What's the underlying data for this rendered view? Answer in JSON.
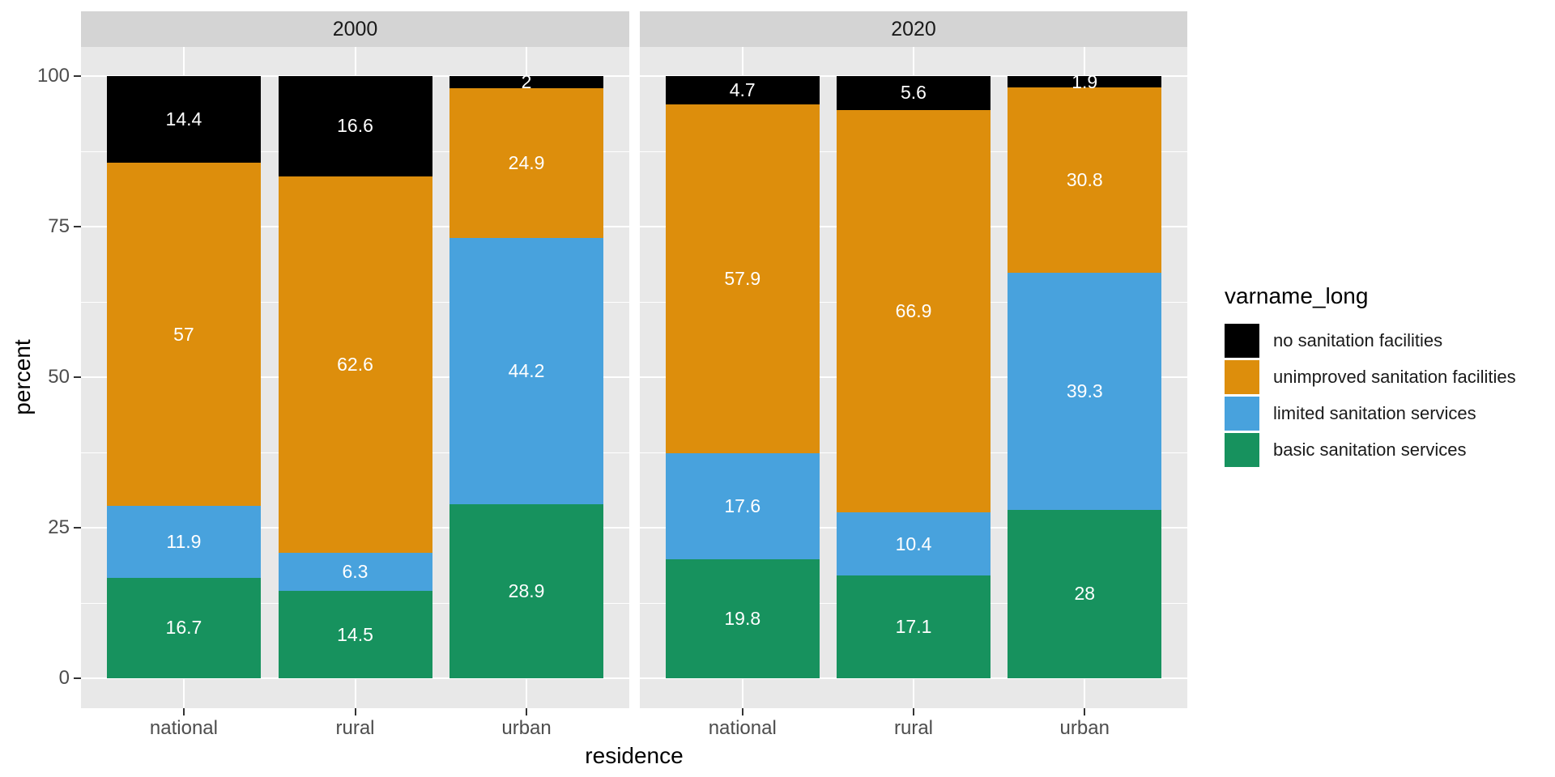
{
  "chart_data": {
    "type": "bar",
    "stacked": true,
    "title": "",
    "xlabel": "residence",
    "ylabel": "percent",
    "legend_title": "varname_long",
    "legend_position": "right",
    "facets": [
      "2000",
      "2020"
    ],
    "categories": [
      "national",
      "rural",
      "urban"
    ],
    "ylim": [
      0,
      100
    ],
    "yticks_major": [
      0,
      25,
      50,
      75,
      100
    ],
    "yticks_minor": [
      12.5,
      37.5,
      62.5,
      87.5
    ],
    "grid": true,
    "series": [
      {
        "name": "no sanitation facilities",
        "color": "#000000",
        "values": {
          "2000": [
            14.4,
            16.6,
            2
          ],
          "2020": [
            4.7,
            5.6,
            1.9
          ]
        }
      },
      {
        "name": "unimproved sanitation facilities",
        "color": "#DD8E0C",
        "values": {
          "2000": [
            57,
            62.6,
            24.9
          ],
          "2020": [
            57.9,
            66.9,
            30.8
          ]
        }
      },
      {
        "name": "limited sanitation services",
        "color": "#48A2DD",
        "values": {
          "2000": [
            11.9,
            6.3,
            44.2
          ],
          "2020": [
            17.6,
            10.4,
            39.3
          ]
        }
      },
      {
        "name": "basic sanitation services",
        "color": "#17925E",
        "values": {
          "2000": [
            16.7,
            14.5,
            28.9
          ],
          "2020": [
            19.8,
            17.1,
            28
          ]
        }
      }
    ],
    "bar_label_color": "#FFFFFF"
  },
  "colors": {
    "background": "#FFFFFF",
    "panel_background": "#E8E8E8",
    "strip_background": "#D4D4D4",
    "gridline": "#FFFFFF",
    "tick": "#333333",
    "tick_label": "#4D4D4D",
    "text": "#000000"
  }
}
